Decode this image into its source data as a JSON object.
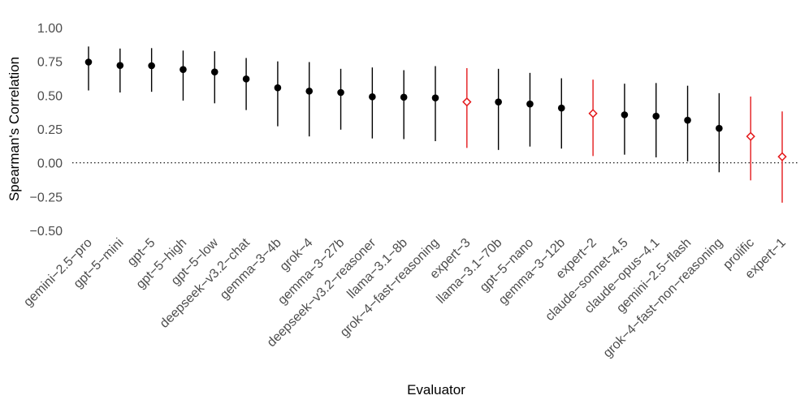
{
  "chart_data": {
    "type": "pointrange",
    "xlabel": "Evaluator",
    "ylabel": "Spearman's Correlation",
    "ylim": [
      -0.5,
      1.0
    ],
    "yticks": [
      -0.5,
      -0.25,
      0.0,
      0.25,
      0.5,
      0.75,
      1.0
    ],
    "ytick_labels": [
      "−0.50",
      "−0.25",
      "0.00",
      "0.25",
      "0.50",
      "0.75",
      "1.00"
    ],
    "reference_line": {
      "y": 0,
      "style": "dotted"
    },
    "colors": {
      "model": "#000000",
      "expert": "#e41a1c"
    },
    "points": [
      {
        "label": "gemini−2.5−pro",
        "estimate": 0.745,
        "lower": 0.535,
        "upper": 0.86,
        "group": "model"
      },
      {
        "label": "gpt−5−mini",
        "estimate": 0.72,
        "lower": 0.52,
        "upper": 0.845,
        "group": "model"
      },
      {
        "label": "gpt−5",
        "estimate": 0.718,
        "lower": 0.525,
        "upper": 0.848,
        "group": "model"
      },
      {
        "label": "gpt−5−high",
        "estimate": 0.69,
        "lower": 0.46,
        "upper": 0.83,
        "group": "model"
      },
      {
        "label": "gpt−5−low",
        "estimate": 0.672,
        "lower": 0.44,
        "upper": 0.825,
        "group": "model"
      },
      {
        "label": "deepseek−v3.2−chat",
        "estimate": 0.62,
        "lower": 0.39,
        "upper": 0.775,
        "group": "model"
      },
      {
        "label": "gemma−3−4b",
        "estimate": 0.555,
        "lower": 0.27,
        "upper": 0.75,
        "group": "model"
      },
      {
        "label": "grok−4",
        "estimate": 0.53,
        "lower": 0.195,
        "upper": 0.745,
        "group": "model"
      },
      {
        "label": "gemma−3−27b",
        "estimate": 0.52,
        "lower": 0.245,
        "upper": 0.695,
        "group": "model"
      },
      {
        "label": "deepseek−v3.2−reasoner",
        "estimate": 0.488,
        "lower": 0.18,
        "upper": 0.705,
        "group": "model"
      },
      {
        "label": "llama−3.1−8b",
        "estimate": 0.485,
        "lower": 0.175,
        "upper": 0.685,
        "group": "model"
      },
      {
        "label": "grok−4−fast−reasoning",
        "estimate": 0.48,
        "lower": 0.16,
        "upper": 0.715,
        "group": "model"
      },
      {
        "label": "expert−3",
        "estimate": 0.45,
        "lower": 0.11,
        "upper": 0.7,
        "group": "expert"
      },
      {
        "label": "llama−3.1−70b",
        "estimate": 0.45,
        "lower": 0.095,
        "upper": 0.695,
        "group": "model"
      },
      {
        "label": "gpt−5−nano",
        "estimate": 0.435,
        "lower": 0.12,
        "upper": 0.665,
        "group": "model"
      },
      {
        "label": "gemma−3−12b",
        "estimate": 0.405,
        "lower": 0.105,
        "upper": 0.625,
        "group": "model"
      },
      {
        "label": "expert−2",
        "estimate": 0.365,
        "lower": 0.05,
        "upper": 0.615,
        "group": "expert"
      },
      {
        "label": "claude−sonnet−4.5",
        "estimate": 0.355,
        "lower": 0.06,
        "upper": 0.585,
        "group": "model"
      },
      {
        "label": "claude−opus−4.1",
        "estimate": 0.345,
        "lower": 0.04,
        "upper": 0.59,
        "group": "model"
      },
      {
        "label": "gemini−2.5−flash",
        "estimate": 0.315,
        "lower": 0.01,
        "upper": 0.57,
        "group": "model"
      },
      {
        "label": "grok−4−fast−non−reasoning",
        "estimate": 0.255,
        "lower": -0.07,
        "upper": 0.515,
        "group": "model"
      },
      {
        "label": "prolific",
        "estimate": 0.195,
        "lower": -0.13,
        "upper": 0.49,
        "group": "expert"
      },
      {
        "label": "expert−1",
        "estimate": 0.045,
        "lower": -0.295,
        "upper": 0.38,
        "group": "expert"
      }
    ]
  }
}
